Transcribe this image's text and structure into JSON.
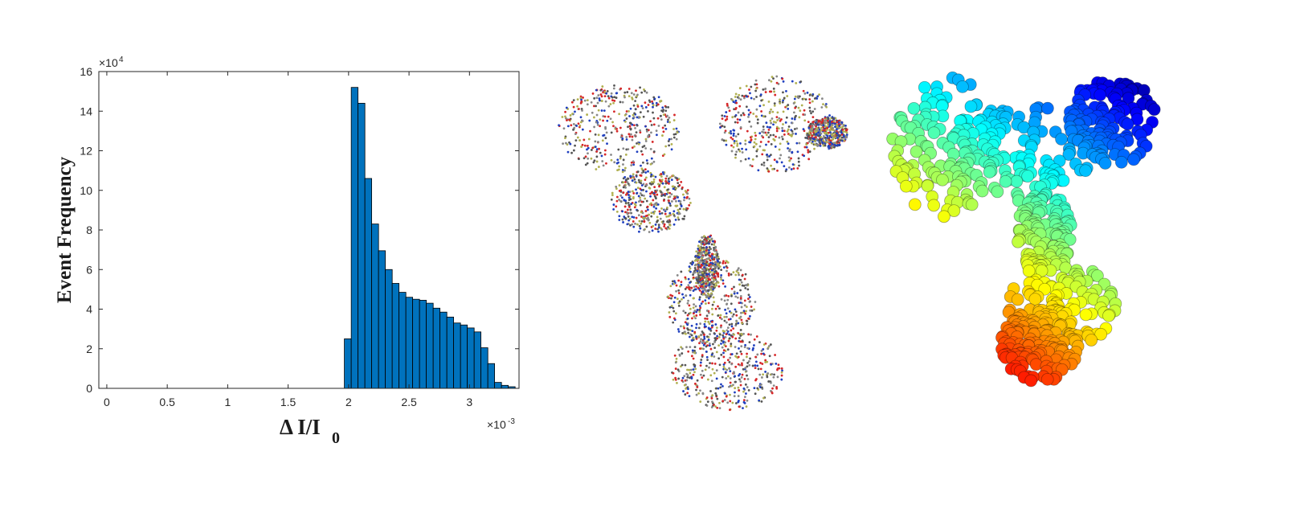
{
  "chart_data": {
    "type": "histogram",
    "xlabel": "Δ I/I",
    "xlabel_sub": "0",
    "ylabel": "Event Frequency",
    "x_multiplier": "×10",
    "x_exponent": "-3",
    "y_multiplier": "×10",
    "y_exponent": "4",
    "color": "#0072bd",
    "bins": [
      1.965,
      2.022,
      2.078,
      2.135,
      2.191,
      2.248,
      2.304,
      2.361,
      2.417,
      2.474,
      2.53,
      2.587,
      2.643,
      2.7,
      2.756,
      2.813,
      2.869,
      2.926,
      2.982,
      3.039,
      3.095,
      3.152,
      3.208,
      3.265,
      3.321,
      3.378
    ],
    "values": [
      2.5,
      15.2,
      14.4,
      10.6,
      8.3,
      6.95,
      6.0,
      5.3,
      4.85,
      4.6,
      4.5,
      4.45,
      4.3,
      4.05,
      3.85,
      3.6,
      3.3,
      3.2,
      3.05,
      2.85,
      2.05,
      1.25,
      0.3,
      0.15,
      0.08
    ],
    "xlim": [
      -0.066,
      3.41
    ],
    "ylim": [
      0,
      16
    ],
    "xticks": [
      0,
      0.5,
      1,
      1.5,
      2,
      2.5,
      3
    ],
    "yticks": [
      0,
      2,
      4,
      6,
      8,
      10,
      12,
      14,
      16
    ]
  }
}
